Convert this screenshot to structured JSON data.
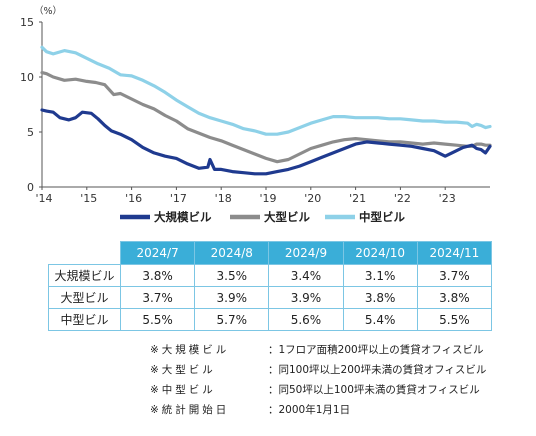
{
  "chart_data": {
    "type": "line",
    "unit_label": "（%）",
    "ylim": [
      0,
      15
    ],
    "yticks": [
      0,
      5,
      10,
      15
    ],
    "xlim": [
      2014.0,
      2024.0
    ],
    "xticks": [
      {
        "value": 2014,
        "label": "'14"
      },
      {
        "value": 2015,
        "label": "'15"
      },
      {
        "value": 2016,
        "label": "'16"
      },
      {
        "value": 2017,
        "label": "'17"
      },
      {
        "value": 2018,
        "label": "'18"
      },
      {
        "value": 2019,
        "label": "'19"
      },
      {
        "value": 2020,
        "label": "'20"
      },
      {
        "value": 2021,
        "label": "'21"
      },
      {
        "value": 2022,
        "label": "'22"
      },
      {
        "value": 2023,
        "label": "'23"
      }
    ],
    "grid": false,
    "legend_position": "bottom",
    "series": [
      {
        "name": "大規模ビル",
        "color": "#1f3a8f",
        "x": [
          2014.0,
          2014.1,
          2014.25,
          2014.4,
          2014.6,
          2014.75,
          2014.9,
          2015.1,
          2015.25,
          2015.4,
          2015.55,
          2015.75,
          2016.0,
          2016.25,
          2016.5,
          2016.75,
          2017.0,
          2017.25,
          2017.5,
          2017.7,
          2017.75,
          2017.85,
          2018.0,
          2018.25,
          2018.5,
          2018.75,
          2019.0,
          2019.25,
          2019.5,
          2019.75,
          2020.0,
          2020.25,
          2020.5,
          2020.75,
          2021.0,
          2021.25,
          2021.5,
          2021.75,
          2022.0,
          2022.25,
          2022.5,
          2022.75,
          2023.0,
          2023.2,
          2023.4,
          2023.6,
          2023.7,
          2023.8,
          2023.9,
          2024.0
        ],
        "y": [
          7.0,
          6.9,
          6.8,
          6.3,
          6.1,
          6.3,
          6.8,
          6.7,
          6.2,
          5.6,
          5.1,
          4.8,
          4.3,
          3.6,
          3.1,
          2.8,
          2.6,
          2.1,
          1.7,
          1.8,
          2.5,
          1.6,
          1.6,
          1.4,
          1.3,
          1.2,
          1.2,
          1.4,
          1.6,
          1.9,
          2.3,
          2.7,
          3.1,
          3.5,
          3.9,
          4.1,
          4.0,
          3.9,
          3.8,
          3.7,
          3.5,
          3.3,
          2.8,
          3.2,
          3.6,
          3.8,
          3.5,
          3.4,
          3.1,
          3.7
        ]
      },
      {
        "name": "大型ビル",
        "color": "#8c8c8c",
        "x": [
          2014.0,
          2014.1,
          2014.25,
          2014.5,
          2014.75,
          2015.0,
          2015.2,
          2015.4,
          2015.6,
          2015.75,
          2016.0,
          2016.25,
          2016.5,
          2016.75,
          2017.0,
          2017.25,
          2017.5,
          2017.75,
          2018.0,
          2018.25,
          2018.5,
          2018.75,
          2019.0,
          2019.25,
          2019.5,
          2019.75,
          2020.0,
          2020.25,
          2020.5,
          2020.75,
          2021.0,
          2021.25,
          2021.5,
          2021.75,
          2022.0,
          2022.25,
          2022.5,
          2022.75,
          2023.0,
          2023.25,
          2023.5,
          2023.6,
          2023.7,
          2023.8,
          2023.9,
          2024.0
        ],
        "y": [
          10.4,
          10.3,
          10.0,
          9.7,
          9.8,
          9.6,
          9.5,
          9.3,
          8.4,
          8.5,
          8.0,
          7.5,
          7.1,
          6.5,
          6.0,
          5.3,
          4.9,
          4.5,
          4.2,
          3.8,
          3.4,
          3.0,
          2.6,
          2.3,
          2.5,
          3.0,
          3.5,
          3.8,
          4.1,
          4.3,
          4.4,
          4.3,
          4.2,
          4.1,
          4.1,
          4.0,
          3.9,
          4.0,
          3.9,
          3.8,
          3.7,
          3.7,
          3.9,
          3.9,
          3.8,
          3.8
        ]
      },
      {
        "name": "中型ビル",
        "color": "#8ed1e8",
        "x": [
          2014.0,
          2014.1,
          2014.25,
          2014.5,
          2014.75,
          2015.0,
          2015.25,
          2015.5,
          2015.75,
          2016.0,
          2016.25,
          2016.5,
          2016.75,
          2017.0,
          2017.25,
          2017.5,
          2017.75,
          2018.0,
          2018.25,
          2018.5,
          2018.75,
          2019.0,
          2019.25,
          2019.5,
          2019.75,
          2020.0,
          2020.25,
          2020.5,
          2020.75,
          2021.0,
          2021.25,
          2021.5,
          2021.75,
          2022.0,
          2022.25,
          2022.5,
          2022.75,
          2023.0,
          2023.25,
          2023.5,
          2023.6,
          2023.7,
          2023.8,
          2023.9,
          2024.0
        ],
        "y": [
          12.7,
          12.3,
          12.1,
          12.4,
          12.2,
          11.7,
          11.2,
          10.8,
          10.2,
          10.1,
          9.7,
          9.2,
          8.6,
          7.9,
          7.3,
          6.7,
          6.3,
          6.0,
          5.7,
          5.3,
          5.1,
          4.8,
          4.8,
          5.0,
          5.4,
          5.8,
          6.1,
          6.4,
          6.4,
          6.3,
          6.3,
          6.3,
          6.2,
          6.2,
          6.1,
          6.0,
          6.0,
          5.9,
          5.9,
          5.8,
          5.5,
          5.7,
          5.6,
          5.4,
          5.5
        ]
      }
    ]
  },
  "table": {
    "headers": [
      "2024/7",
      "2024/8",
      "2024/9",
      "2024/10",
      "2024/11"
    ],
    "rows": [
      {
        "label": "大規模ビル",
        "values": [
          "3.8%",
          "3.5%",
          "3.4%",
          "3.1%",
          "3.7%"
        ]
      },
      {
        "label": "大型ビル",
        "values": [
          "3.7%",
          "3.9%",
          "3.9%",
          "3.8%",
          "3.8%"
        ]
      },
      {
        "label": "中型ビル",
        "values": [
          "5.5%",
          "5.7%",
          "5.6%",
          "5.4%",
          "5.5%"
        ]
      }
    ]
  },
  "notes": [
    {
      "label": "※大規模ビル",
      "text": "：1フロア面積200坪以上の賃貸オフィスビル"
    },
    {
      "label": "※大型ビル",
      "text": "：同100坪以上200坪未満の賃貸オフィスビル"
    },
    {
      "label": "※中型ビル",
      "text": "：同50坪以上100坪未満の賃貸オフィスビル"
    },
    {
      "label": "※統計開始日",
      "text": "：2000年1月1日"
    }
  ]
}
